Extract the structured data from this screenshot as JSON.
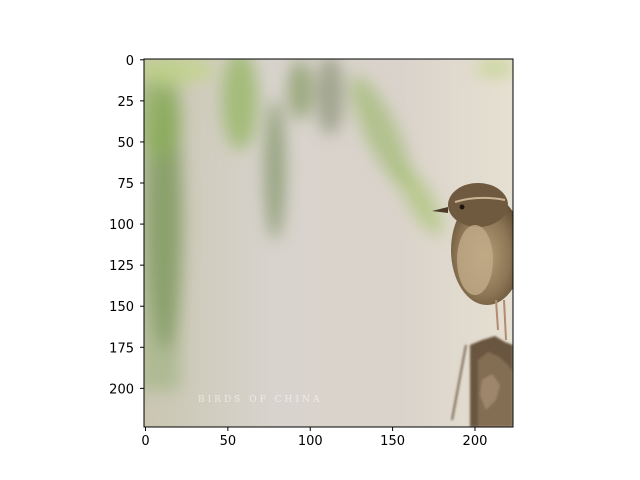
{
  "figure": {
    "type": "image-plot",
    "x_ticks": [
      "0",
      "50",
      "100",
      "150",
      "200"
    ],
    "y_ticks": [
      "0",
      "25",
      "50",
      "75",
      "100",
      "125",
      "150",
      "175",
      "200"
    ],
    "x_range": [
      0,
      224
    ],
    "y_range": [
      0,
      224
    ],
    "image_subject": "small brown wren perched on a tree stump against a blurred green and beige background",
    "watermark": "BIRDS OF CHINA"
  },
  "colors": {
    "background_light": "#e2dcd3",
    "background_mid": "#d4cdc7",
    "foliage_green": "#8fb35a",
    "foliage_dark": "#5d7a3a",
    "bird_brown": "#7a6548",
    "bird_light": "#b49a72"
  }
}
